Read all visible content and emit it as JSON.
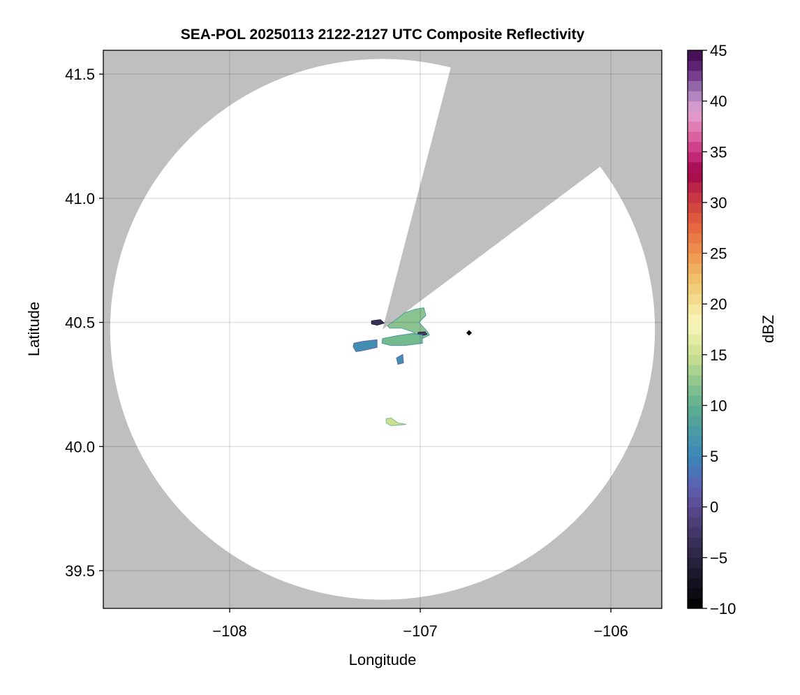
{
  "chart_data": {
    "type": "heatmap",
    "title": "SEA-POL 20250113 2122-2127 UTC Composite Reflectivity",
    "xlabel": "Longitude",
    "ylabel": "Latitude",
    "xlim": [
      -108.663,
      -105.733
    ],
    "ylim": [
      39.348,
      41.596
    ],
    "xticks": [
      -108,
      -107,
      -106
    ],
    "xtick_labels": [
      "−108",
      "−107",
      "−106"
    ],
    "yticks": [
      39.5,
      40.0,
      40.5,
      41.0,
      41.5
    ],
    "ytick_labels": [
      "39.5",
      "40.0",
      "40.5",
      "41.0",
      "41.5"
    ],
    "grid": true,
    "background_color": "#bfbfbf",
    "coverage": {
      "center": [
        -107.198,
        40.472
      ],
      "radius_lat_deg": 1.089,
      "radius_lon_deg": 1.429,
      "blocked_azimuth_deg": [
        14.5,
        53
      ],
      "color": "#ffffff"
    },
    "marker": {
      "lon": -106.744,
      "lat": 40.458,
      "shape": "diamond",
      "color": "#000000"
    },
    "echoes": [
      {
        "dbz": 12,
        "polygon": [
          [
            -107.172,
            40.486
          ],
          [
            -107.081,
            40.539
          ],
          [
            -107.026,
            40.553
          ],
          [
            -106.982,
            40.559
          ],
          [
            -106.971,
            40.528
          ],
          [
            -107.007,
            40.5
          ],
          [
            -106.963,
            40.463
          ],
          [
            -106.952,
            40.449
          ],
          [
            -106.989,
            40.435
          ],
          [
            -107.044,
            40.463
          ],
          [
            -107.099,
            40.477
          ],
          [
            -107.161,
            40.477
          ]
        ]
      },
      {
        "dbz": -2,
        "polygon": [
          [
            -107.01,
            40.46
          ],
          [
            -106.975,
            40.462
          ],
          [
            -106.965,
            40.452
          ],
          [
            -106.99,
            40.447
          ],
          [
            -107.015,
            40.452
          ]
        ]
      },
      {
        "dbz": 11,
        "polygon": [
          [
            -107.198,
            40.435
          ],
          [
            -107.117,
            40.447
          ],
          [
            -107.044,
            40.455
          ],
          [
            -106.989,
            40.449
          ],
          [
            -106.989,
            40.416
          ],
          [
            -107.081,
            40.407
          ],
          [
            -107.154,
            40.407
          ],
          [
            -107.201,
            40.416
          ]
        ]
      },
      {
        "dbz": 6,
        "polygon": [
          [
            -107.348,
            40.416
          ],
          [
            -107.3,
            40.424
          ],
          [
            -107.227,
            40.43
          ],
          [
            -107.227,
            40.399
          ],
          [
            -107.3,
            40.387
          ],
          [
            -107.337,
            40.382
          ],
          [
            -107.352,
            40.402
          ]
        ]
      },
      {
        "dbz": -3,
        "polygon": [
          [
            -107.256,
            40.506
          ],
          [
            -107.209,
            40.511
          ],
          [
            -107.19,
            40.497
          ],
          [
            -107.227,
            40.489
          ],
          [
            -107.256,
            40.494
          ]
        ]
      },
      {
        "dbz": 6,
        "polygon": [
          [
            -107.125,
            40.357
          ],
          [
            -107.092,
            40.371
          ],
          [
            -107.088,
            40.337
          ],
          [
            -107.117,
            40.331
          ]
        ]
      },
      {
        "dbz": 15,
        "polygon": [
          [
            -107.179,
            40.112
          ],
          [
            -107.154,
            40.115
          ],
          [
            -107.117,
            40.095
          ],
          [
            -107.073,
            40.089
          ],
          [
            -107.154,
            40.084
          ],
          [
            -107.179,
            40.095
          ]
        ]
      }
    ],
    "colorbar": {
      "label": "dBZ",
      "range": [
        -10,
        45
      ],
      "step": 1,
      "ticks": [
        -10,
        -5,
        0,
        5,
        10,
        15,
        20,
        25,
        30,
        35,
        40,
        45
      ],
      "tick_labels": [
        "−10",
        "−5",
        "0",
        "5",
        "10",
        "15",
        "20",
        "25",
        "30",
        "35",
        "40",
        "45"
      ],
      "color_stops": [
        [
          -10,
          "#000000"
        ],
        [
          -5,
          "#2a2440"
        ],
        [
          0,
          "#5a4a90"
        ],
        [
          2,
          "#5c62b4"
        ],
        [
          5,
          "#3a86b8"
        ],
        [
          10,
          "#5db08f"
        ],
        [
          15,
          "#cde08e"
        ],
        [
          18,
          "#f8f8bc"
        ],
        [
          22,
          "#f0c870"
        ],
        [
          25,
          "#f09550"
        ],
        [
          28,
          "#e4603e"
        ],
        [
          31,
          "#c22e44"
        ],
        [
          33,
          "#a0064a"
        ],
        [
          35,
          "#cc3282"
        ],
        [
          37,
          "#e070a8"
        ],
        [
          39,
          "#e2a4d4"
        ],
        [
          41,
          "#a07ab8"
        ],
        [
          43,
          "#6a2a80"
        ],
        [
          45,
          "#3a0848"
        ]
      ]
    }
  }
}
